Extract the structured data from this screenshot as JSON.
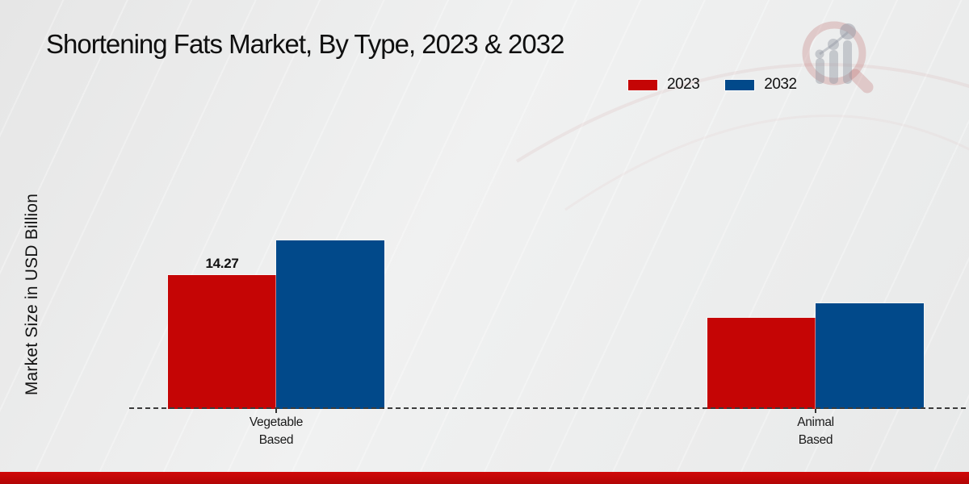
{
  "chart_data": {
    "type": "bar",
    "title": "Shortening Fats Market, By Type, 2023 & 2032",
    "ylabel": "Market Size in USD Billion",
    "xlabel": "",
    "categories": [
      "Vegetable Based",
      "Animal Based"
    ],
    "series": [
      {
        "name": "2023",
        "color": "#c50505",
        "values": [
          14.27,
          9.7
        ]
      },
      {
        "name": "2032",
        "color": "#01498a",
        "values": [
          18.0,
          11.25
        ]
      }
    ],
    "value_labels": [
      {
        "series_index": 0,
        "category_index": 0,
        "text": "14.27"
      }
    ],
    "ylim": [
      0,
      20
    ],
    "grid": false,
    "legend_position": "top-right",
    "baseline_style": "dashed"
  },
  "colors": {
    "series_2023": "#c50505",
    "series_2032": "#01498a",
    "footer_bar": "#c30707",
    "dashed_baseline": "#3b3b3b",
    "background": "#ebebeb"
  },
  "watermark": {
    "icon": "magnifier-bar-chart-logo"
  }
}
